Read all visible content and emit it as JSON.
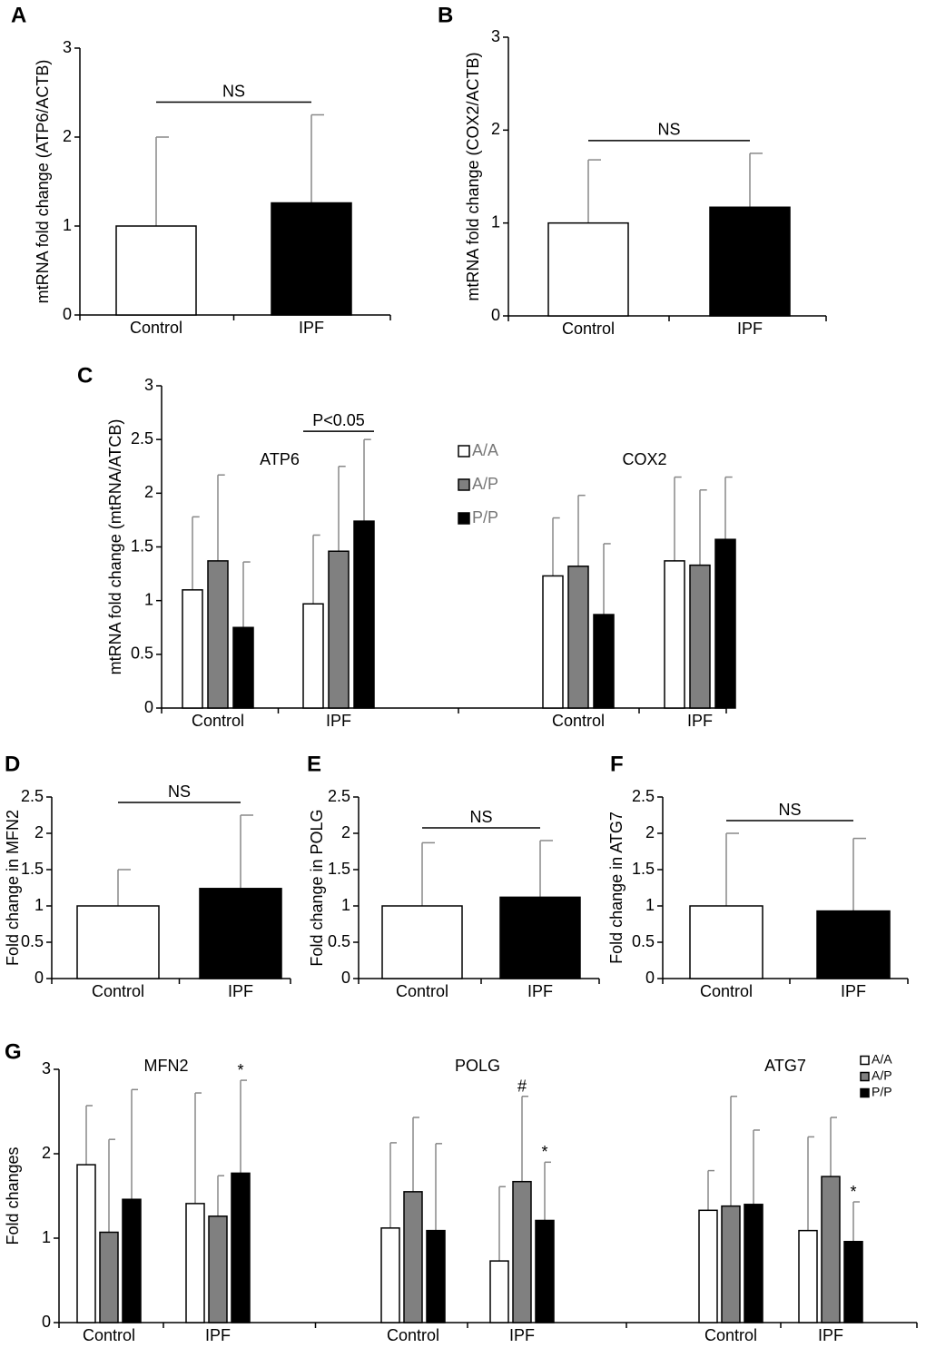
{
  "chart_data": [
    {
      "type": "bar",
      "panel": "A",
      "ylabel": "mtRNA fold change  (ATP6/ACTB)",
      "categories": [
        "Control",
        "IPF"
      ],
      "values": [
        1,
        1.26
      ],
      "errors": [
        1.0,
        0.99
      ],
      "colors": [
        "#ffffff",
        "#000000"
      ],
      "ylim": [
        0,
        3
      ],
      "yticks": [
        0,
        1,
        2,
        3
      ],
      "annotations": [
        "NS"
      ]
    },
    {
      "type": "bar",
      "panel": "B",
      "ylabel": "mtRNA fold change  (COX2/ACTB)",
      "categories": [
        "Control",
        "IPF"
      ],
      "values": [
        1,
        1.17
      ],
      "errors": [
        0.68,
        0.58
      ],
      "colors": [
        "#ffffff",
        "#000000"
      ],
      "ylim": [
        0,
        3
      ],
      "yticks": [
        0,
        1,
        2,
        3
      ],
      "annotations": [
        "NS"
      ]
    },
    {
      "type": "grouped-bar",
      "panel": "C",
      "ylabel": "mtRNA fold change (mtRNA/ATCB)",
      "groups": [
        "ATP6",
        "COX2"
      ],
      "categories": [
        "Control",
        "IPF",
        "Control",
        "IPF"
      ],
      "series": [
        {
          "name": "A/A",
          "color": "#ffffff",
          "values": [
            1.1,
            0.97,
            1.23,
            1.37
          ],
          "errors": [
            0.68,
            0.64,
            0.54,
            0.78
          ]
        },
        {
          "name": "A/P",
          "color": "#808080",
          "values": [
            1.37,
            1.46,
            1.32,
            1.33
          ],
          "errors": [
            0.8,
            0.79,
            0.66,
            0.7
          ]
        },
        {
          "name": "P/P",
          "color": "#000000",
          "values": [
            0.75,
            1.74,
            0.87,
            1.57
          ],
          "errors": [
            0.61,
            0.76,
            0.66,
            0.58
          ]
        }
      ],
      "ylim": [
        0,
        3
      ],
      "yticks": [
        0,
        0.5,
        1,
        1.5,
        2,
        2.5,
        3
      ],
      "legend": "upper center",
      "annotations": [
        "P<0.05"
      ]
    },
    {
      "type": "bar",
      "panel": "D",
      "ylabel": "Fold change in  MFN2",
      "categories": [
        "Control",
        "IPF"
      ],
      "values": [
        1,
        1.24
      ],
      "errors": [
        0.5,
        1.01
      ],
      "colors": [
        "#ffffff",
        "#000000"
      ],
      "ylim": [
        0,
        2.5
      ],
      "yticks": [
        0,
        0.5,
        1,
        1.5,
        2,
        2.5
      ],
      "annotations": [
        "NS"
      ]
    },
    {
      "type": "bar",
      "panel": "E",
      "ylabel": "Fold change in POLG",
      "categories": [
        "Control",
        "IPF"
      ],
      "values": [
        1,
        1.12
      ],
      "errors": [
        0.87,
        0.78
      ],
      "colors": [
        "#ffffff",
        "#000000"
      ],
      "ylim": [
        0,
        2.5
      ],
      "yticks": [
        0,
        0.5,
        1,
        1.5,
        2,
        2.5
      ],
      "annotations": [
        "NS"
      ]
    },
    {
      "type": "bar",
      "panel": "F",
      "ylabel": "Fold change in ATG7",
      "categories": [
        "Control",
        "IPF"
      ],
      "values": [
        1,
        0.93
      ],
      "errors": [
        1.0,
        1.0
      ],
      "colors": [
        "#ffffff",
        "#000000"
      ],
      "ylim": [
        0,
        2.5
      ],
      "yticks": [
        0,
        0.5,
        1,
        1.5,
        2,
        2.5
      ],
      "annotations": [
        "NS"
      ]
    },
    {
      "type": "grouped-bar",
      "panel": "G",
      "ylabel": "Fold changes",
      "groups": [
        "MFN2",
        "POLG",
        "ATG7"
      ],
      "categories": [
        "Control",
        "IPF",
        "Control",
        "IPF",
        "Control",
        "IPF"
      ],
      "series": [
        {
          "name": "A/A",
          "color": "#ffffff",
          "values": [
            1.87,
            1.41,
            1.12,
            0.73,
            1.33,
            1.09
          ],
          "errors": [
            0.7,
            1.31,
            1.01,
            0.88,
            0.47,
            1.11
          ]
        },
        {
          "name": "A/P",
          "color": "#808080",
          "values": [
            1.07,
            1.26,
            1.55,
            1.67,
            1.38,
            1.73
          ],
          "errors": [
            1.1,
            0.48,
            0.88,
            1.01,
            1.3,
            0.7
          ]
        },
        {
          "name": "P/P",
          "color": "#000000",
          "values": [
            1.46,
            1.77,
            1.09,
            1.21,
            1.4,
            0.96
          ],
          "errors": [
            1.3,
            1.1,
            1.03,
            0.69,
            0.88,
            0.47
          ]
        }
      ],
      "ylim": [
        0,
        3
      ],
      "yticks": [
        0,
        1,
        2,
        3
      ],
      "legend": "upper right",
      "annotations": [
        "*",
        "#",
        "*",
        "*"
      ]
    }
  ]
}
